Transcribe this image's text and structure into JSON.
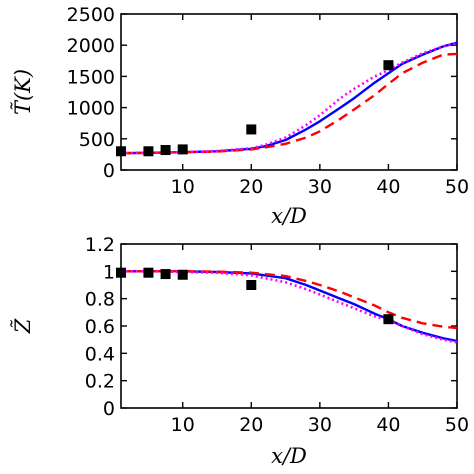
{
  "chart_data": [
    {
      "type": "line",
      "xlabel": "x/D",
      "ylabel": "T̃(K)",
      "xlim": [
        1,
        50
      ],
      "ylim": [
        0,
        2500
      ],
      "xticks": [
        10,
        20,
        30,
        40,
        50
      ],
      "xtick_labels": [
        "10",
        "20",
        "30",
        "40",
        "50"
      ],
      "yticks": [
        0,
        500,
        1000,
        1500,
        2000,
        2500
      ],
      "ytick_labels": [
        "0",
        "500",
        "1000",
        "1500",
        "2000",
        "2500"
      ],
      "grid": false,
      "legend": "none",
      "series": [
        {
          "style": "solid",
          "color": "#0000ff",
          "x": [
            1,
            5,
            10,
            15,
            20,
            22,
            25,
            28,
            30,
            33,
            35,
            38,
            40,
            42,
            45,
            48,
            50
          ],
          "y": [
            270,
            275,
            285,
            300,
            340,
            380,
            480,
            650,
            780,
            1000,
            1150,
            1400,
            1550,
            1700,
            1850,
            1980,
            2040
          ]
        },
        {
          "style": "dashed",
          "color": "#ff0000",
          "x": [
            1,
            5,
            10,
            15,
            20,
            22,
            25,
            28,
            30,
            33,
            35,
            38,
            40,
            42,
            45,
            48,
            50
          ],
          "y": [
            270,
            275,
            285,
            295,
            330,
            360,
            420,
            520,
            620,
            820,
            970,
            1200,
            1380,
            1550,
            1720,
            1850,
            1860
          ]
        },
        {
          "style": "dotted",
          "color": "#ff00ff",
          "x": [
            1,
            5,
            10,
            15,
            20,
            22,
            25,
            28,
            30,
            33,
            35,
            38,
            40,
            42,
            45,
            48,
            50
          ],
          "y": [
            270,
            275,
            285,
            305,
            350,
            400,
            520,
            720,
            880,
            1150,
            1300,
            1500,
            1600,
            1720,
            1870,
            1980,
            2030
          ]
        },
        {
          "style": "markers",
          "color": "#000000",
          "x": [
            1,
            5,
            7.5,
            10,
            20,
            40
          ],
          "y": [
            300,
            300,
            320,
            330,
            650,
            1680
          ]
        }
      ]
    },
    {
      "type": "line",
      "xlabel": "x/D",
      "ylabel": "Z̃",
      "xlim": [
        1,
        50
      ],
      "ylim": [
        0,
        1.2
      ],
      "xticks": [
        10,
        20,
        30,
        40,
        50
      ],
      "xtick_labels": [
        "10",
        "20",
        "30",
        "40",
        "50"
      ],
      "yticks": [
        0,
        0.2,
        0.4,
        0.6,
        0.8,
        1,
        1.2
      ],
      "ytick_labels": [
        "0",
        "0.2",
        "0.4",
        "0.6",
        "0.8",
        "1",
        "1.2"
      ],
      "grid": false,
      "legend": "none",
      "series": [
        {
          "style": "solid",
          "color": "#0000ff",
          "x": [
            1,
            5,
            10,
            15,
            20,
            25,
            28,
            30,
            33,
            35,
            38,
            40,
            42,
            45,
            48,
            50
          ],
          "y": [
            1.0,
            1.0,
            1.0,
            0.995,
            0.985,
            0.95,
            0.9,
            0.86,
            0.8,
            0.76,
            0.69,
            0.65,
            0.6,
            0.55,
            0.51,
            0.49
          ]
        },
        {
          "style": "dashed",
          "color": "#ff0000",
          "x": [
            1,
            5,
            10,
            15,
            20,
            25,
            28,
            30,
            33,
            35,
            38,
            40,
            42,
            45,
            48,
            50
          ],
          "y": [
            1.0,
            1.0,
            1.0,
            0.998,
            0.99,
            0.965,
            0.93,
            0.9,
            0.85,
            0.81,
            0.75,
            0.7,
            0.66,
            0.62,
            0.595,
            0.585
          ]
        },
        {
          "style": "dotted",
          "color": "#ff00ff",
          "x": [
            1,
            5,
            10,
            15,
            20,
            25,
            28,
            30,
            33,
            35,
            38,
            40,
            42,
            45,
            48,
            50
          ],
          "y": [
            1.0,
            1.0,
            0.995,
            0.99,
            0.97,
            0.92,
            0.87,
            0.83,
            0.77,
            0.73,
            0.67,
            0.64,
            0.6,
            0.54,
            0.5,
            0.48
          ]
        },
        {
          "style": "markers",
          "color": "#000000",
          "x": [
            1,
            5,
            7.5,
            10,
            20,
            40
          ],
          "y": [
            0.99,
            0.99,
            0.98,
            0.975,
            0.9,
            0.65
          ]
        }
      ]
    }
  ]
}
